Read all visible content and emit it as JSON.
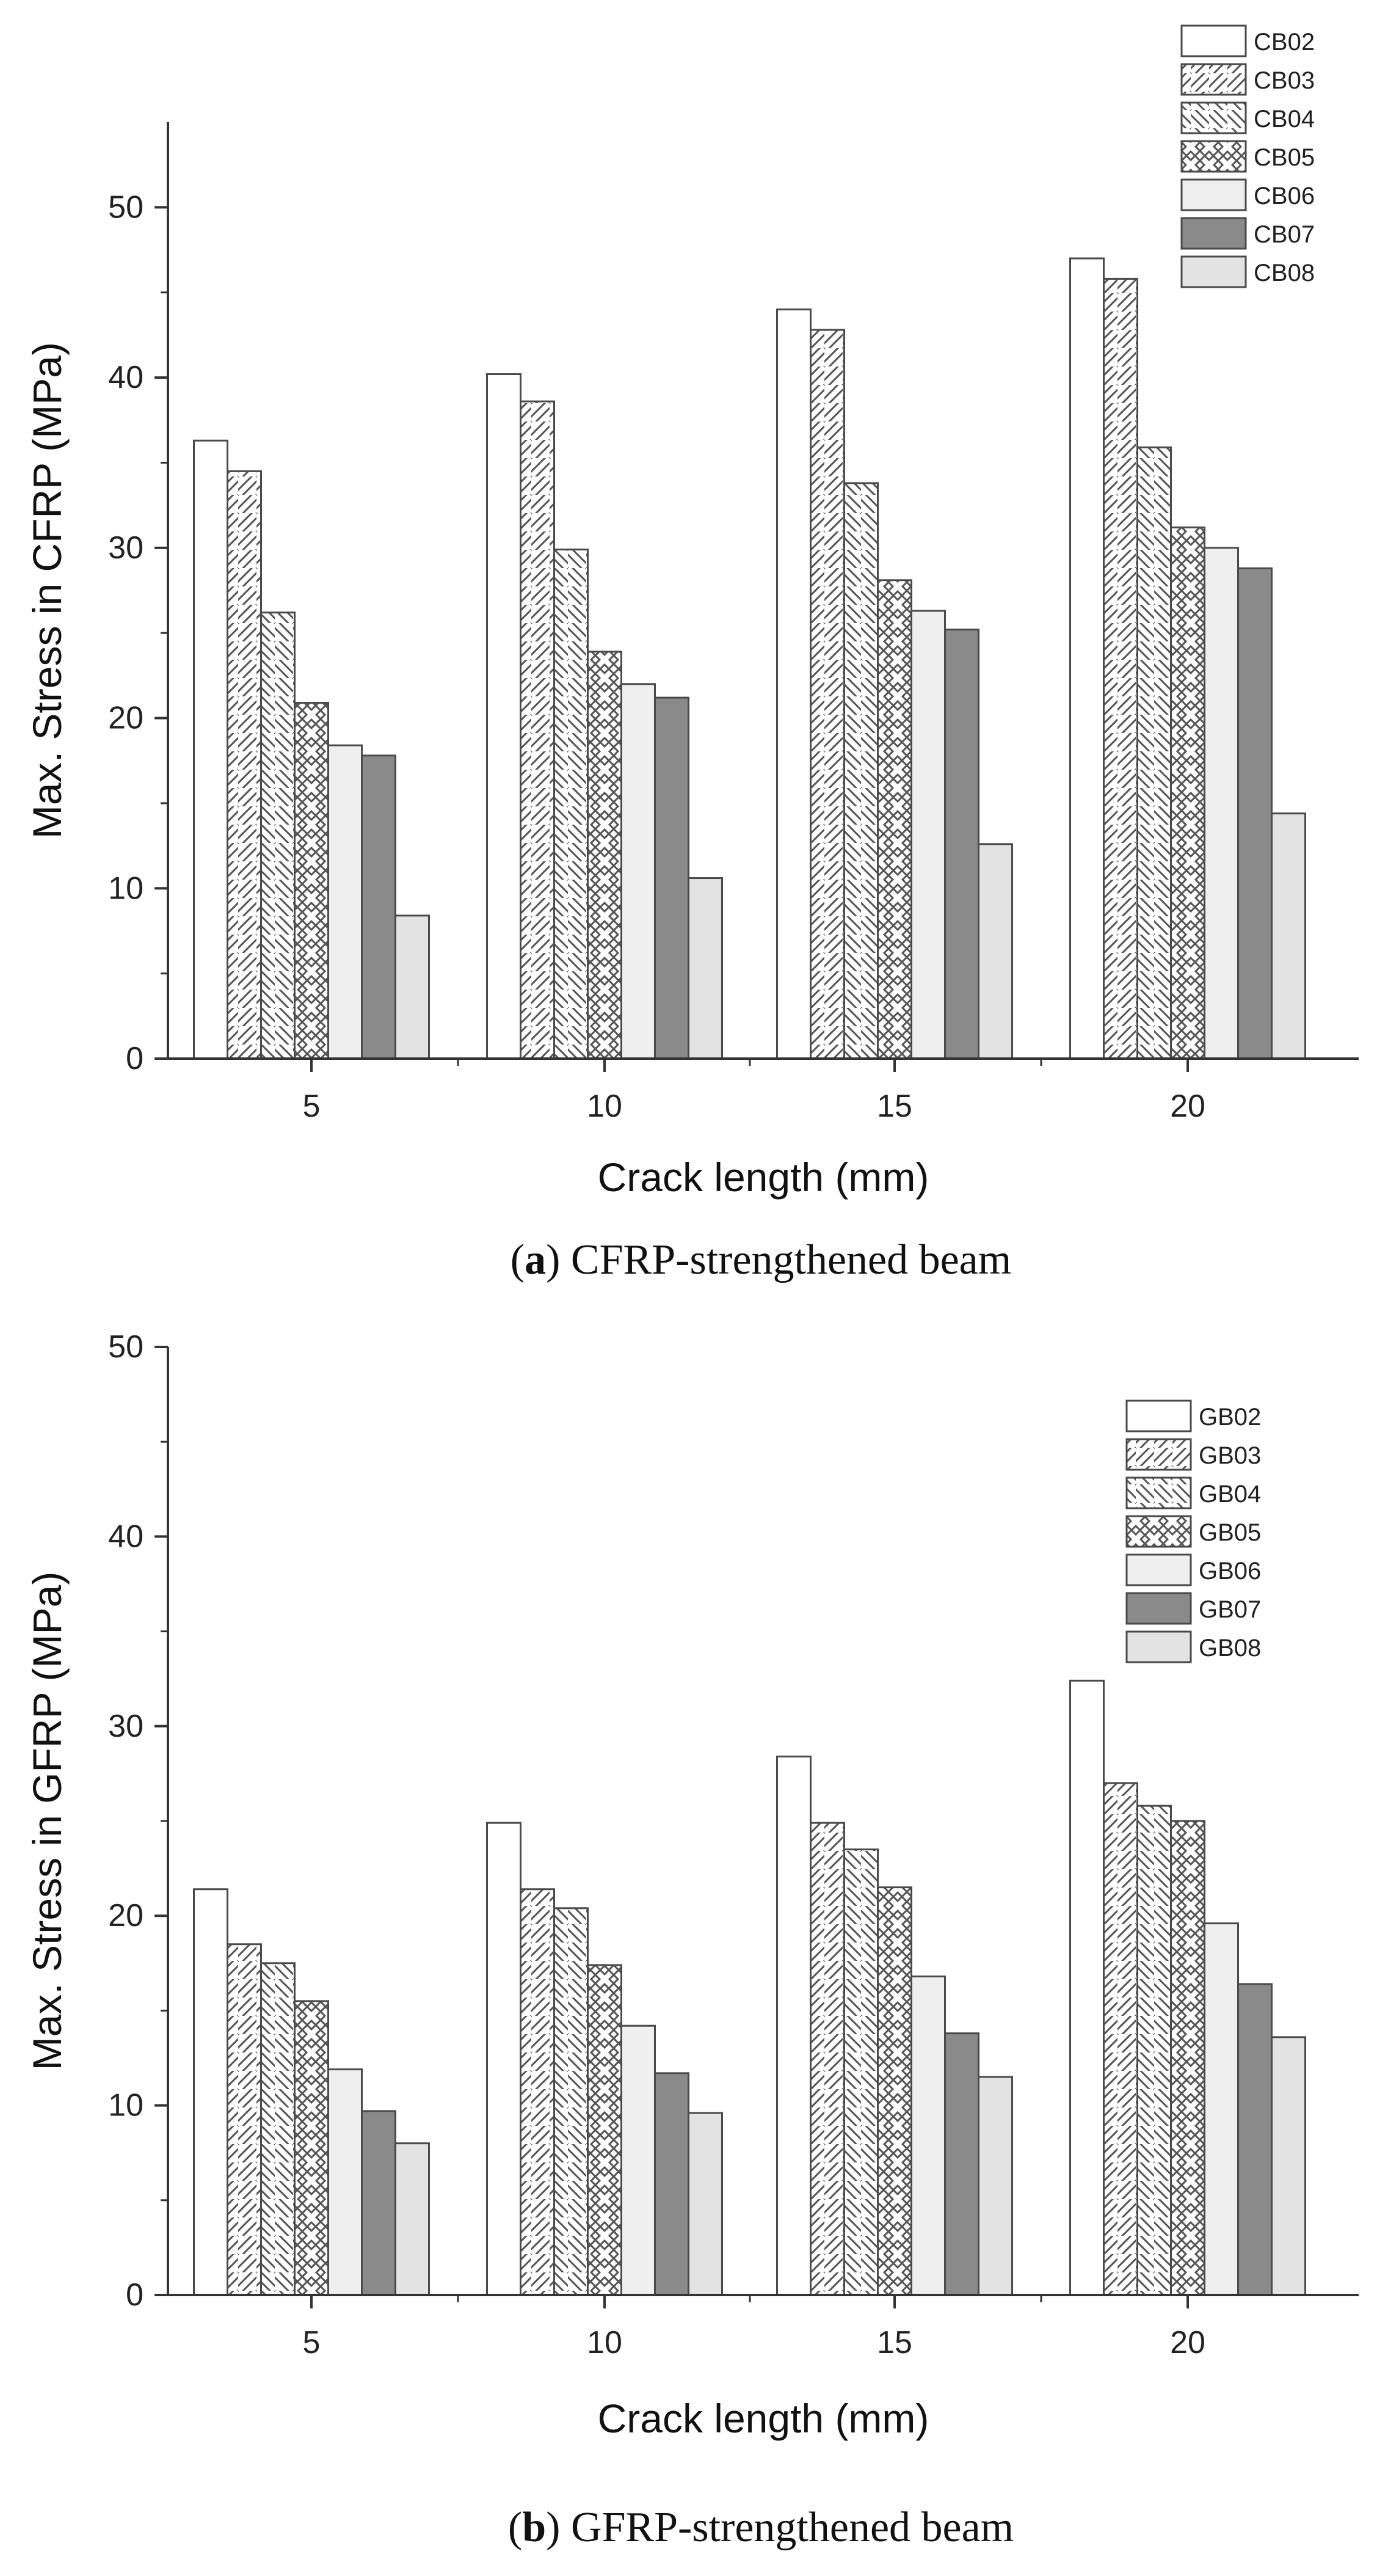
{
  "colors": {
    "axis": "#333333",
    "bar_edge": "#4a4a4a",
    "hatch": "#555555",
    "white": "#ffffff",
    "light_gray": "#efefef",
    "dark_gray": "#8a8a8a",
    "light_fill": "#e3e3e3"
  },
  "chart_data": [
    {
      "type": "bar",
      "caption_letter": "a",
      "caption_text": " CFRP-strengthened beam",
      "xlabel": "Crack length (mm)",
      "ylabel": "Max. Stress in CFRP (MPa)",
      "ylim": [
        0,
        55
      ],
      "yticks": [
        0,
        10,
        20,
        30,
        40,
        50
      ],
      "categories": [
        "5",
        "10",
        "15",
        "20"
      ],
      "legend_position": "top-right",
      "series": [
        {
          "name": "CB02",
          "pattern": "white",
          "values": [
            36.3,
            40.2,
            44.0,
            47.0
          ]
        },
        {
          "name": "CB03",
          "pattern": "diag-up",
          "values": [
            34.5,
            38.6,
            42.8,
            45.8
          ]
        },
        {
          "name": "CB04",
          "pattern": "diag-down",
          "values": [
            26.2,
            29.9,
            33.8,
            35.9
          ]
        },
        {
          "name": "CB05",
          "pattern": "cross",
          "values": [
            20.9,
            23.9,
            28.1,
            31.2
          ]
        },
        {
          "name": "CB06",
          "pattern": "light",
          "values": [
            18.4,
            22.0,
            26.3,
            30.0
          ]
        },
        {
          "name": "CB07",
          "pattern": "dark",
          "values": [
            17.8,
            21.2,
            25.2,
            28.8
          ]
        },
        {
          "name": "CB08",
          "pattern": "lightfill",
          "values": [
            8.4,
            10.6,
            12.6,
            14.4
          ]
        }
      ]
    },
    {
      "type": "bar",
      "caption_letter": "b",
      "caption_text": " GFRP-strengthened beam",
      "xlabel": "Crack length (mm)",
      "ylabel": "Max. Stress in GFRP (MPa)",
      "ylim": [
        0,
        50
      ],
      "yticks": [
        0,
        10,
        20,
        30,
        40,
        50
      ],
      "categories": [
        "5",
        "10",
        "15",
        "20"
      ],
      "legend_position": "top-right",
      "series": [
        {
          "name": "GB02",
          "pattern": "white",
          "values": [
            21.4,
            24.9,
            28.4,
            32.4
          ]
        },
        {
          "name": "GB03",
          "pattern": "diag-up",
          "values": [
            18.5,
            21.4,
            24.9,
            27.0
          ]
        },
        {
          "name": "GB04",
          "pattern": "diag-down",
          "values": [
            17.5,
            20.4,
            23.5,
            25.8
          ]
        },
        {
          "name": "GB05",
          "pattern": "cross",
          "values": [
            15.5,
            17.4,
            21.5,
            25.0
          ]
        },
        {
          "name": "GB06",
          "pattern": "light",
          "values": [
            11.9,
            14.2,
            16.8,
            19.6
          ]
        },
        {
          "name": "GB07",
          "pattern": "dark",
          "values": [
            9.7,
            11.7,
            13.8,
            16.4
          ]
        },
        {
          "name": "GB08",
          "pattern": "lightfill",
          "values": [
            8.0,
            9.6,
            11.5,
            13.6
          ]
        }
      ]
    }
  ]
}
